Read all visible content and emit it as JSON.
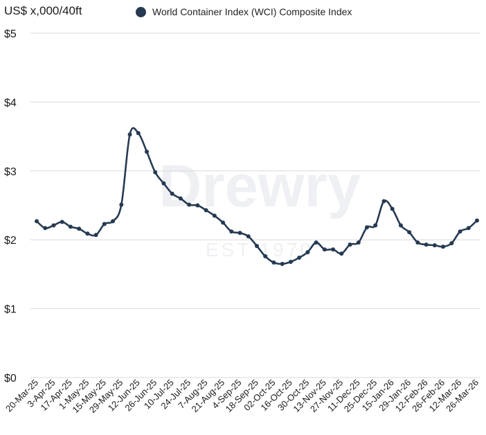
{
  "header": {
    "unit_label": "US$ x,000/40ft"
  },
  "legend": {
    "series_label": "World Container Index (WCI) Composite Index"
  },
  "watermark": {
    "brand": "Drewry",
    "established": "EST 1970"
  },
  "colors": {
    "line": "#253a52",
    "grid": "#d9d9d9",
    "axis_text": "#1a1a1a",
    "watermark": "#eef0f3"
  },
  "chart_data": {
    "type": "line",
    "title": "",
    "ylabel": "US$ x,000/40ft",
    "ylim": [
      0,
      5
    ],
    "y_ticks": [
      "$0",
      "$1",
      "$2",
      "$3",
      "$4",
      "$5"
    ],
    "grid": true,
    "legend_position": "top",
    "x_tick_labels": [
      "20-Mar-25",
      "3-Apr-25",
      "17-Apr-25",
      "1-May-25",
      "15-May-25",
      "29-May-25",
      "12-Jun-25",
      "26-Jun-25",
      "10-Jul-25",
      "24-Jul-25",
      "7-Aug-25",
      "21-Aug-25",
      "4-Sep-25",
      "18-Sep-25",
      "02-Oct-25",
      "16-Oct-25",
      "30-Oct-25",
      "13-Nov-25",
      "27-Nov-25",
      "11-Dec-25",
      "25-Dec-25",
      "15-Jan-26",
      "29-Jan-26",
      "12-Feb-26",
      "26-Feb-26",
      "12-Mar-26",
      "26-Mar-26"
    ],
    "series": [
      {
        "name": "World Container Index (WCI) Composite Index",
        "values": [
          2.27,
          2.17,
          2.21,
          2.26,
          2.19,
          2.16,
          2.09,
          2.07,
          2.23,
          2.27,
          2.51,
          3.53,
          3.55,
          3.28,
          2.98,
          2.82,
          2.67,
          2.6,
          2.51,
          2.5,
          2.43,
          2.35,
          2.25,
          2.12,
          2.1,
          2.05,
          1.91,
          1.76,
          1.67,
          1.65,
          1.68,
          1.74,
          1.82,
          1.96,
          1.86,
          1.86,
          1.8,
          1.93,
          1.96,
          2.18,
          2.21,
          2.56,
          2.45,
          2.21,
          2.11,
          1.96,
          1.93,
          1.92,
          1.9,
          1.95,
          2.12,
          2.17,
          2.28
        ]
      }
    ]
  }
}
